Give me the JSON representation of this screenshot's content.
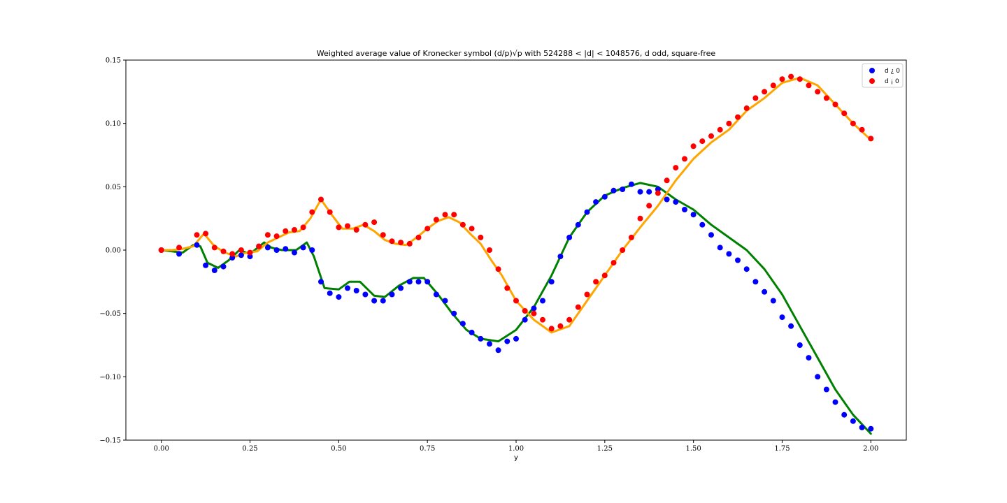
{
  "chart_data": {
    "type": "scatter",
    "title": "Weighted average value of Kronecker symbol (d/p)√p with 524288 < |d| < 1048576, d odd, square-free",
    "xlabel": "y",
    "ylabel": "",
    "xlim": [
      -0.1,
      2.1
    ],
    "ylim": [
      -0.15,
      0.15
    ],
    "xticks": [
      0.0,
      0.25,
      0.5,
      0.75,
      1.0,
      1.25,
      1.5,
      1.75,
      2.0
    ],
    "xtick_labels": [
      "0.00",
      "0.25",
      "0.50",
      "0.75",
      "1.00",
      "1.25",
      "1.50",
      "1.75",
      "2.00"
    ],
    "yticks": [
      -0.15,
      -0.1,
      -0.05,
      0.0,
      0.05,
      0.1,
      0.15
    ],
    "ytick_labels": [
      "−0.15",
      "−0.10",
      "−0.05",
      "0.00",
      "0.05",
      "0.10",
      "0.15"
    ],
    "grid": false,
    "legend_position": "top-right",
    "series": [
      {
        "name": "d ¿ 0",
        "kind": "scatter",
        "color": "#0000ff",
        "x": [
          0.0,
          0.05,
          0.1,
          0.125,
          0.15,
          0.175,
          0.2,
          0.225,
          0.25,
          0.275,
          0.3,
          0.325,
          0.35,
          0.375,
          0.4,
          0.425,
          0.45,
          0.475,
          0.5,
          0.525,
          0.55,
          0.575,
          0.6,
          0.625,
          0.65,
          0.675,
          0.7,
          0.725,
          0.75,
          0.775,
          0.8,
          0.825,
          0.85,
          0.875,
          0.9,
          0.925,
          0.95,
          0.975,
          1.0,
          1.025,
          1.05,
          1.075,
          1.1,
          1.125,
          1.15,
          1.175,
          1.2,
          1.225,
          1.25,
          1.275,
          1.3,
          1.325,
          1.35,
          1.375,
          1.4,
          1.425,
          1.45,
          1.475,
          1.5,
          1.525,
          1.55,
          1.575,
          1.6,
          1.625,
          1.65,
          1.675,
          1.7,
          1.725,
          1.75,
          1.775,
          1.8,
          1.825,
          1.85,
          1.875,
          1.9,
          1.925,
          1.95,
          1.975,
          2.0
        ],
        "y": [
          0.0,
          -0.003,
          0.004,
          -0.012,
          -0.016,
          -0.013,
          -0.006,
          -0.004,
          -0.005,
          0.003,
          0.002,
          0.0,
          0.001,
          -0.002,
          0.002,
          0.0,
          -0.025,
          -0.034,
          -0.037,
          -0.03,
          -0.032,
          -0.035,
          -0.04,
          -0.04,
          -0.035,
          -0.03,
          -0.025,
          -0.025,
          -0.025,
          -0.035,
          -0.04,
          -0.05,
          -0.058,
          -0.065,
          -0.07,
          -0.074,
          -0.079,
          -0.072,
          -0.07,
          -0.055,
          -0.046,
          -0.04,
          -0.025,
          -0.005,
          0.01,
          0.02,
          0.03,
          0.038,
          0.042,
          0.047,
          0.048,
          0.052,
          0.046,
          0.046,
          0.048,
          0.04,
          0.038,
          0.032,
          0.028,
          0.02,
          0.012,
          0.002,
          -0.003,
          -0.008,
          -0.015,
          -0.025,
          -0.033,
          -0.04,
          -0.053,
          -0.06,
          -0.075,
          -0.085,
          -0.1,
          -0.11,
          -0.12,
          -0.13,
          -0.135,
          -0.14,
          -0.141
        ]
      },
      {
        "name": "d ¡ 0",
        "kind": "scatter",
        "color": "#ff0000",
        "x": [
          0.0,
          0.05,
          0.1,
          0.125,
          0.15,
          0.175,
          0.2,
          0.225,
          0.25,
          0.275,
          0.3,
          0.325,
          0.35,
          0.375,
          0.4,
          0.425,
          0.45,
          0.475,
          0.5,
          0.525,
          0.55,
          0.575,
          0.6,
          0.625,
          0.65,
          0.675,
          0.7,
          0.725,
          0.75,
          0.775,
          0.8,
          0.825,
          0.85,
          0.875,
          0.9,
          0.925,
          0.95,
          0.975,
          1.0,
          1.025,
          1.05,
          1.075,
          1.1,
          1.125,
          1.15,
          1.175,
          1.2,
          1.225,
          1.25,
          1.275,
          1.3,
          1.325,
          1.35,
          1.375,
          1.4,
          1.425,
          1.45,
          1.475,
          1.5,
          1.525,
          1.55,
          1.575,
          1.6,
          1.625,
          1.65,
          1.675,
          1.7,
          1.725,
          1.75,
          1.775,
          1.8,
          1.825,
          1.85,
          1.875,
          1.9,
          1.925,
          1.95,
          1.975,
          2.0
        ],
        "y": [
          0.0,
          0.002,
          0.012,
          0.013,
          0.002,
          -0.001,
          -0.003,
          0.0,
          -0.002,
          0.003,
          0.012,
          0.011,
          0.015,
          0.016,
          0.018,
          0.03,
          0.04,
          0.03,
          0.018,
          0.019,
          0.016,
          0.02,
          0.022,
          0.012,
          0.007,
          0.006,
          0.005,
          0.01,
          0.017,
          0.024,
          0.028,
          0.028,
          0.02,
          0.017,
          0.01,
          0.0,
          -0.015,
          -0.03,
          -0.04,
          -0.048,
          -0.05,
          -0.055,
          -0.062,
          -0.06,
          -0.055,
          -0.045,
          -0.035,
          -0.025,
          -0.02,
          -0.01,
          0.0,
          0.01,
          0.025,
          0.035,
          0.045,
          0.055,
          0.065,
          0.072,
          0.082,
          0.086,
          0.09,
          0.095,
          0.1,
          0.105,
          0.112,
          0.12,
          0.125,
          0.13,
          0.135,
          0.137,
          0.135,
          0.13,
          0.125,
          0.12,
          0.115,
          0.108,
          0.1,
          0.095,
          0.088
        ]
      },
      {
        "kind": "line",
        "color": "#008000",
        "x": [
          0.0,
          0.03,
          0.06,
          0.09,
          0.11,
          0.13,
          0.16,
          0.19,
          0.22,
          0.25,
          0.29,
          0.31,
          0.34,
          0.38,
          0.41,
          0.43,
          0.46,
          0.5,
          0.53,
          0.56,
          0.6,
          0.63,
          0.67,
          0.71,
          0.74,
          0.78,
          0.82,
          0.86,
          0.9,
          0.95,
          1.0,
          1.05,
          1.1,
          1.15,
          1.2,
          1.25,
          1.3,
          1.35,
          1.4,
          1.45,
          1.5,
          1.55,
          1.6,
          1.65,
          1.7,
          1.75,
          1.8,
          1.85,
          1.9,
          1.95,
          2.0
        ],
        "y": [
          0.0,
          -0.001,
          -0.002,
          0.004,
          0.003,
          -0.01,
          -0.014,
          -0.008,
          0.0,
          -0.003,
          0.006,
          0.002,
          0.0,
          0.0,
          0.006,
          -0.005,
          -0.03,
          -0.031,
          -0.025,
          -0.025,
          -0.036,
          -0.037,
          -0.028,
          -0.022,
          -0.022,
          -0.035,
          -0.05,
          -0.063,
          -0.07,
          -0.072,
          -0.063,
          -0.045,
          -0.02,
          0.01,
          0.03,
          0.043,
          0.049,
          0.053,
          0.05,
          0.04,
          0.032,
          0.02,
          0.01,
          0.0,
          -0.015,
          -0.035,
          -0.06,
          -0.085,
          -0.11,
          -0.13,
          -0.145
        ]
      },
      {
        "kind": "line",
        "color": "#ffa500",
        "x": [
          0.0,
          0.03,
          0.06,
          0.09,
          0.12,
          0.15,
          0.18,
          0.21,
          0.24,
          0.27,
          0.3,
          0.33,
          0.36,
          0.39,
          0.42,
          0.45,
          0.48,
          0.51,
          0.54,
          0.57,
          0.6,
          0.63,
          0.66,
          0.69,
          0.72,
          0.75,
          0.78,
          0.81,
          0.84,
          0.87,
          0.9,
          0.93,
          0.96,
          1.0,
          1.05,
          1.1,
          1.15,
          1.2,
          1.25,
          1.3,
          1.35,
          1.4,
          1.45,
          1.5,
          1.55,
          1.6,
          1.65,
          1.7,
          1.75,
          1.8,
          1.85,
          1.9,
          1.95,
          2.0
        ],
        "y": [
          0.0,
          0.0,
          0.001,
          0.003,
          0.013,
          0.003,
          -0.002,
          -0.005,
          -0.002,
          -0.001,
          0.006,
          0.01,
          0.014,
          0.015,
          0.025,
          0.04,
          0.028,
          0.017,
          0.017,
          0.02,
          0.015,
          0.008,
          0.005,
          0.004,
          0.01,
          0.017,
          0.023,
          0.026,
          0.022,
          0.013,
          0.005,
          -0.008,
          -0.02,
          -0.04,
          -0.055,
          -0.065,
          -0.06,
          -0.04,
          -0.02,
          0.0,
          0.018,
          0.035,
          0.055,
          0.072,
          0.085,
          0.095,
          0.11,
          0.12,
          0.132,
          0.136,
          0.13,
          0.115,
          0.1,
          0.087
        ]
      }
    ]
  }
}
